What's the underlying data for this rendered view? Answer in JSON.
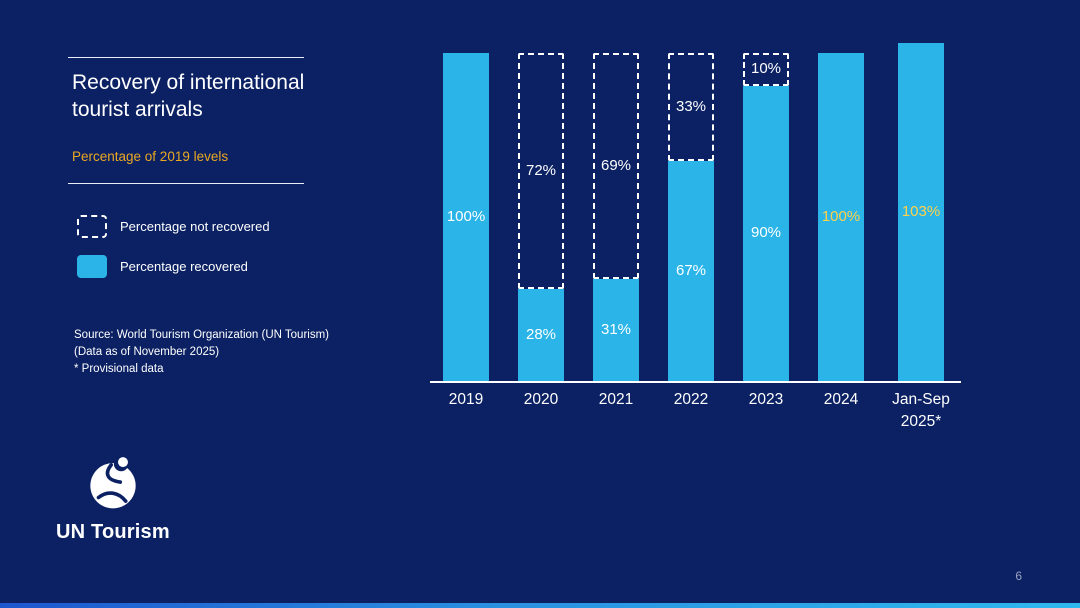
{
  "slide": {
    "title": "Recovery of international tourist arrivals",
    "subtitle": "Percentage of 2019 levels",
    "page_number": "6"
  },
  "legend": {
    "not_recovered_label": "Percentage not recovered",
    "recovered_label": "Percentage recovered"
  },
  "source": {
    "line1": "Source: World Tourism Organization (UN Tourism)",
    "line2": "(Data as of November 2025)",
    "line3": "* Provisional data"
  },
  "logo": {
    "text": "UN Tourism"
  },
  "colors": {
    "background": "#0b2163",
    "bar": "#2ab4e8",
    "accent_yellow": "#eaa821",
    "label_yellow": "#ffd24a",
    "text_white": "#ffffff"
  },
  "chart_data": {
    "type": "bar",
    "stacked": true,
    "title": "Recovery of international tourist arrivals",
    "subtitle": "Percentage of 2019 levels",
    "categories": [
      "2019",
      "2020",
      "2021",
      "2022",
      "2023",
      "2024",
      "Jan-Sep 2025*"
    ],
    "category_lines": [
      [
        "2019"
      ],
      [
        "2020"
      ],
      [
        "2021"
      ],
      [
        "2022"
      ],
      [
        "2023"
      ],
      [
        "2024"
      ],
      [
        "Jan-Sep",
        "2025*"
      ]
    ],
    "series": [
      {
        "name": "Percentage recovered",
        "values": [
          100,
          28,
          31,
          67,
          90,
          100,
          103
        ]
      },
      {
        "name": "Percentage not recovered",
        "values": [
          0,
          72,
          69,
          33,
          10,
          0,
          0
        ]
      }
    ],
    "labels": {
      "recovered": [
        "100%",
        "28%",
        "31%",
        "67%",
        "90%",
        "100%",
        "103%"
      ],
      "not_recovered": [
        "",
        "72%",
        "69%",
        "33%",
        "10%",
        "",
        ""
      ],
      "recovered_colors": [
        "#ffffff",
        "#ffffff",
        "#ffffff",
        "#ffffff",
        "#ffffff",
        "#ffd24a",
        "#ffd24a"
      ]
    },
    "xlabel": "",
    "ylabel": "",
    "ylim": [
      0,
      103
    ],
    "grid": false,
    "legend_position": "left"
  }
}
